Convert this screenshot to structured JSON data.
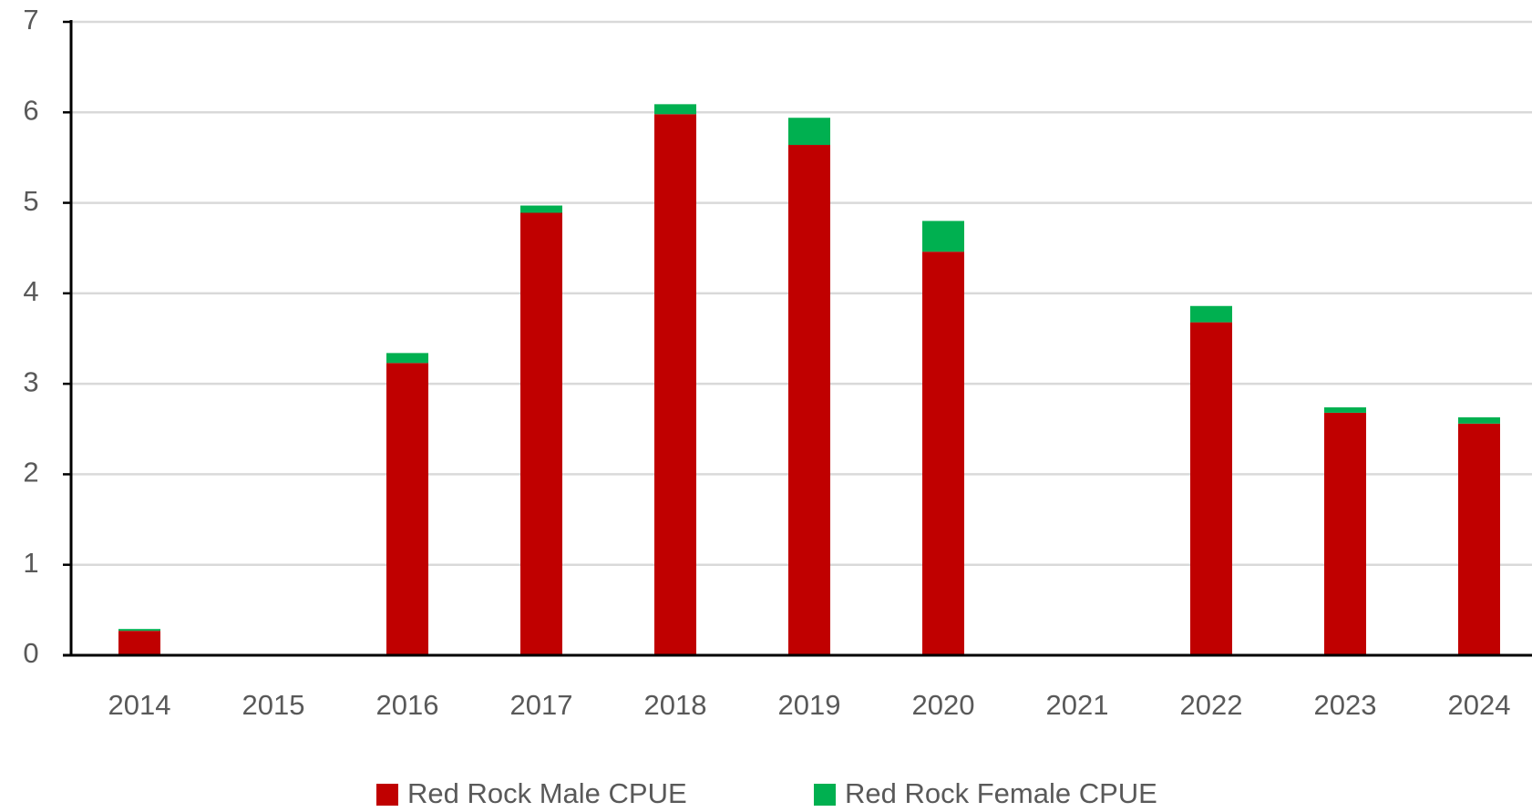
{
  "chart_data": {
    "type": "stacked_bar",
    "categories": [
      "2014",
      "2015",
      "2016",
      "2017",
      "2018",
      "2019",
      "2020",
      "2021",
      "2022",
      "2023",
      "2024"
    ],
    "series": [
      {
        "name": "Red Rock Male CPUE",
        "color": "#c00000",
        "values": [
          0.27,
          0,
          3.23,
          4.89,
          5.98,
          5.64,
          4.46,
          0,
          3.68,
          2.68,
          2.56
        ]
      },
      {
        "name": "Red Rock Female CPUE",
        "color": "#00b050",
        "values": [
          0.02,
          0,
          0.11,
          0.08,
          0.11,
          0.3,
          0.34,
          0,
          0.18,
          0.06,
          0.07
        ]
      }
    ],
    "ylim": [
      0,
      7
    ],
    "yticks": [
      0,
      1,
      2,
      3,
      4,
      5,
      6,
      7
    ],
    "grid": true,
    "legend": "bottom"
  }
}
